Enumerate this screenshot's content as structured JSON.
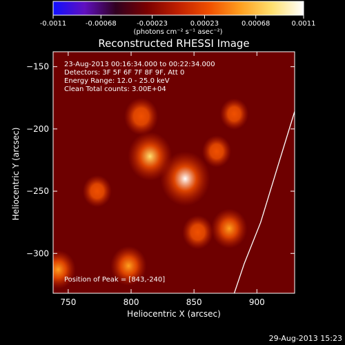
{
  "colorbar": {
    "ticks": [
      "-0.0011",
      "-0.00068",
      "-0.00023",
      "0.00023",
      "0.00068",
      "0.0011"
    ],
    "tick_values": [
      -0.0011,
      -0.00068,
      -0.00023,
      0.00023,
      0.00068,
      0.0011
    ],
    "min": -0.0011,
    "max": 0.0011,
    "unit_label": "(photons cm⁻² s⁻¹ asec⁻²)",
    "colors": [
      "#1010ff",
      "#6010c0",
      "#300020",
      "#7a0000",
      "#c02000",
      "#f05000",
      "#ffa020",
      "#ffe070",
      "#ffffff"
    ]
  },
  "plot": {
    "title": "Reconstructed RHESSI Image",
    "info_lines": [
      "23-Aug-2013 00:16:34.000 to 00:22:34.000",
      "Detectors: 3F 5F 6F 7F 8F 9F, Att 0",
      "Energy Range: 12.0 - 25.0 keV",
      "Clean    Total counts: 3.00E+04"
    ],
    "peak_label": "Position of Peak = [843,-240]",
    "footer_timestamp": "29-Aug-2013 15:23"
  },
  "chart_data": {
    "type": "heatmap",
    "title": "Reconstructed RHESSI Image",
    "xlabel": "Heliocentric X (arcsec)",
    "ylabel": "Heliocentric Y (arcsec)",
    "xlim": [
      738,
      930
    ],
    "ylim": [
      -332,
      -138
    ],
    "xticks": [
      750,
      800,
      850,
      900
    ],
    "yticks": [
      -150,
      -200,
      -250,
      -300
    ],
    "peak": {
      "x": 843,
      "y": -240
    },
    "sources": [
      {
        "x": 843,
        "y": -240,
        "value": 1.0
      },
      {
        "x": 815,
        "y": -222,
        "value": 0.82
      },
      {
        "x": 808,
        "y": -190,
        "value": 0.48
      },
      {
        "x": 878,
        "y": -280,
        "value": 0.55
      },
      {
        "x": 798,
        "y": -310,
        "value": 0.55
      },
      {
        "x": 742,
        "y": -313,
        "value": 0.52
      },
      {
        "x": 853,
        "y": -283,
        "value": 0.38
      },
      {
        "x": 882,
        "y": -188,
        "value": 0.3
      },
      {
        "x": 773,
        "y": -250,
        "value": 0.32
      },
      {
        "x": 868,
        "y": -218,
        "value": 0.32
      }
    ],
    "limb_curve": [
      [
        930,
        -186
      ],
      [
        916,
        -232
      ],
      [
        903,
        -275
      ],
      [
        890,
        -308
      ],
      [
        882,
        -332
      ]
    ]
  }
}
